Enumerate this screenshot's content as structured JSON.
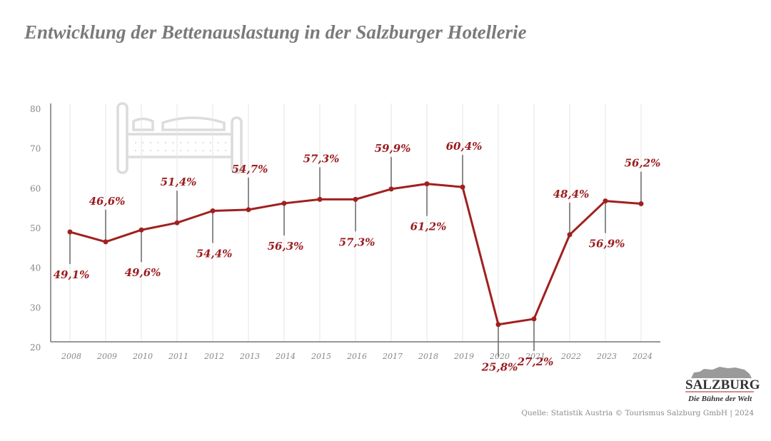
{
  "title": "Entwicklung der Bettenauslastung in der Salzburger Hotellerie",
  "source": "Quelle: Statistik Austria © Tourismus Salzburg GmbH | 2024",
  "logo": {
    "name": "SALZBURG",
    "tagline": "Die Bühne der Welt"
  },
  "colors": {
    "line": "#a0201f",
    "label": "#9b1c1f",
    "axis": "#777777",
    "grid": "#e6e6e6",
    "icon": "#dddddd"
  },
  "icon": "bed-icon",
  "chart_data": {
    "type": "line",
    "title": "Entwicklung der Bettenauslastung in der Salzburger Hotellerie",
    "xlabel": "",
    "ylabel": "",
    "ylim": [
      20,
      80
    ],
    "yticks": [
      20,
      30,
      40,
      50,
      60,
      70,
      80
    ],
    "grid": "vertical",
    "categories": [
      "2008",
      "2009",
      "2010",
      "2011",
      "2012",
      "2013",
      "2014",
      "2015",
      "2016",
      "2017",
      "2018",
      "2019",
      "2020",
      "2021",
      "2022",
      "2023",
      "2024"
    ],
    "values": [
      49.1,
      46.6,
      49.6,
      51.4,
      54.4,
      54.7,
      56.3,
      57.3,
      57.3,
      59.9,
      61.2,
      60.4,
      25.8,
      27.2,
      48.4,
      56.9,
      56.2
    ],
    "data_labels": [
      "49,1%",
      "46,6%",
      "49,6%",
      "51,4%",
      "54,4%",
      "54,7%",
      "56,3%",
      "57,3%",
      "57,3%",
      "59,9%",
      "61,2%",
      "60,4%",
      "25,8%",
      "27,2%",
      "48,4%",
      "56,9%",
      "56,2%"
    ],
    "label_position": [
      "below",
      "above",
      "below",
      "above",
      "below",
      "above",
      "below",
      "above",
      "below",
      "above",
      "below",
      "above",
      "below",
      "below",
      "above",
      "below",
      "above"
    ]
  }
}
